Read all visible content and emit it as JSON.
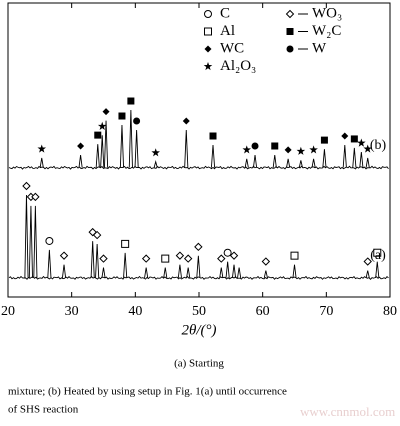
{
  "chart_data": {
    "type": "line",
    "xlabel": "2θ/(°)",
    "xlim": [
      20,
      80
    ],
    "xticks": [
      20,
      30,
      40,
      50,
      60,
      70,
      80
    ],
    "ylim": [
      0,
      100
    ],
    "color": "#000000",
    "phases": [
      {
        "name": "C",
        "symbol": "circle-open"
      },
      {
        "name": "Al",
        "symbol": "square-open"
      },
      {
        "name": "WC",
        "symbol": "diamond-filled"
      },
      {
        "name": "Al₂O₃",
        "symbol": "star"
      },
      {
        "name": "WO₃",
        "symbol": "diamond-open"
      },
      {
        "name": "W₂C",
        "symbol": "square-filled"
      },
      {
        "name": "W",
        "symbol": "circle-filled"
      }
    ],
    "series": [
      {
        "name": "(a)",
        "baseline": 6.5,
        "x": [
          22.9,
          23.6,
          24.3,
          26.5,
          28.8,
          33.3,
          34.0,
          35.0,
          38.4,
          41.7,
          44.7,
          47.0,
          48.3,
          49.9,
          53.5,
          54.5,
          55.5,
          56.3,
          60.5,
          65.0,
          76.5,
          78.0
        ],
        "values": [
          34.7,
          31,
          31,
          16,
          11,
          19,
          18,
          10,
          15,
          10,
          10,
          11,
          10,
          14,
          10,
          12,
          11,
          10,
          9,
          11,
          9,
          12
        ],
        "phases": [
          4,
          4,
          4,
          0,
          4,
          4,
          4,
          4,
          1,
          4,
          1,
          4,
          4,
          4,
          4,
          0,
          4,
          null,
          4,
          1,
          4,
          1
        ]
      },
      {
        "name": "(b)",
        "baseline": 44,
        "x": [
          25.3,
          31.4,
          34.1,
          34.8,
          35.4,
          37.9,
          39.3,
          40.2,
          43.2,
          48.0,
          52.2,
          57.5,
          58.8,
          61.9,
          64.0,
          66.0,
          68.0,
          69.7,
          72.9,
          74.4,
          75.5,
          76.5
        ],
        "values": [
          47.3,
          48.3,
          52,
          55,
          60,
          58.5,
          63.6,
          56.8,
          46,
          56.8,
          51.7,
          47,
          48.3,
          48.3,
          47,
          46.5,
          47,
          50.3,
          51.7,
          50.7,
          49.3,
          47.3
        ],
        "phases": [
          3,
          2,
          5,
          3,
          2,
          5,
          5,
          6,
          3,
          2,
          5,
          3,
          6,
          5,
          2,
          3,
          3,
          5,
          2,
          5,
          3,
          3
        ]
      }
    ],
    "caption": [
      "(a) Starting",
      "mixture; (b) Heated by using setup in Fig. 1(a) until occurrence",
      "of SHS reaction"
    ],
    "watermark": "www.cnnmol.com"
  }
}
